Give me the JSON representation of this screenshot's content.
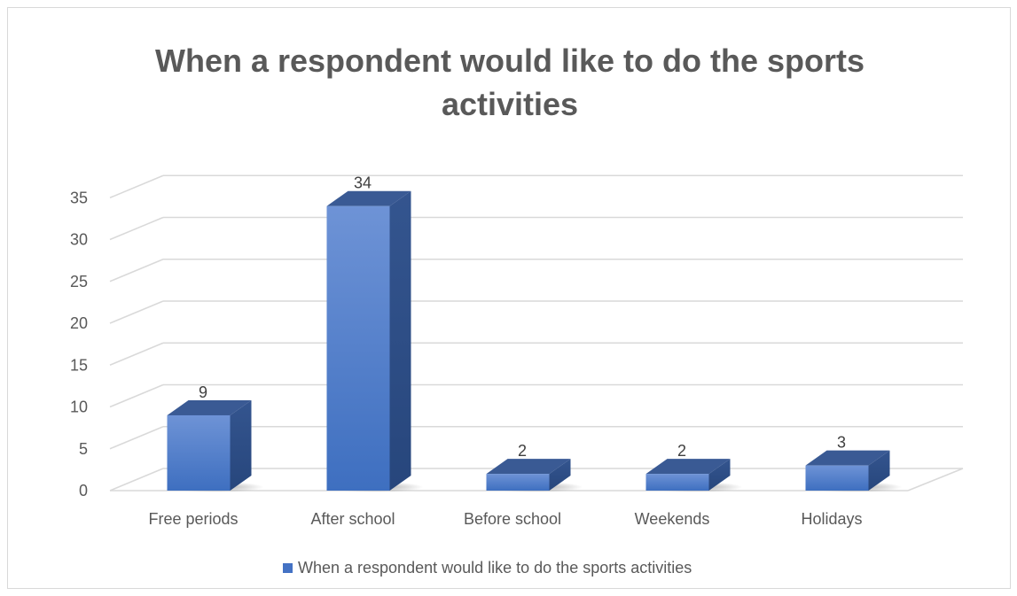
{
  "chart_data": {
    "type": "bar",
    "style": "3d-column",
    "title": "When a respondent  would like to do the sports activities",
    "categories": [
      "Free periods",
      "After school",
      "Before school",
      "Weekends",
      "Holidays"
    ],
    "series": [
      {
        "name": "When a respondent would like to do the sports activities",
        "values": [
          9,
          34,
          2,
          2,
          3
        ],
        "color": "#4472c4"
      }
    ],
    "data_labels": [
      "9",
      "34",
      "2",
      "2",
      "3"
    ],
    "yticks": [
      "0",
      "5",
      "10",
      "15",
      "20",
      "25",
      "30",
      "35"
    ],
    "ylim": [
      0,
      35
    ],
    "xlabel": "",
    "ylabel": "",
    "grid": true,
    "legend_position": "bottom"
  }
}
